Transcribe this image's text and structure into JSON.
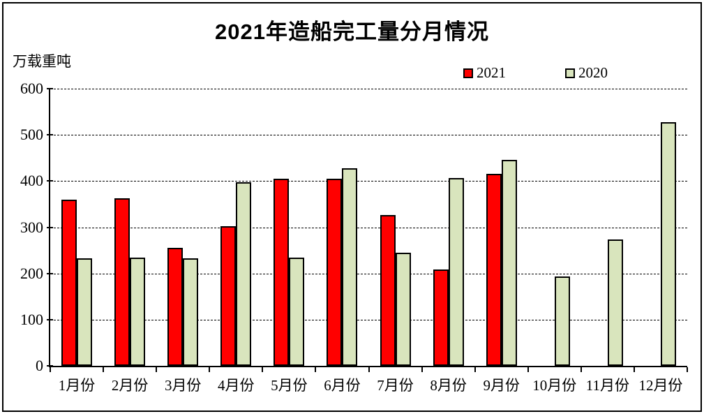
{
  "page": {
    "background": "#ffffff",
    "frame_border_color": "#000000"
  },
  "chart_data": {
    "type": "bar",
    "title": "2021年造船完工量分月情况",
    "ylabel": "万载重吨",
    "xlabel": "",
    "categories": [
      "1月份",
      "2月份",
      "3月份",
      "4月份",
      "5月份",
      "6月份",
      "7月份",
      "8月份",
      "9月份",
      "10月份",
      "11月份",
      "12月份"
    ],
    "series": [
      {
        "name": "2021",
        "color": "#ff0000",
        "values": [
          360,
          362,
          255,
          302,
          405,
          405,
          326,
          209,
          415,
          null,
          null,
          null
        ]
      },
      {
        "name": "2020",
        "color": "#d9e5bd",
        "values": [
          233,
          234,
          232,
          398,
          234,
          427,
          245,
          407,
          446,
          193,
          273,
          528
        ]
      }
    ],
    "ylim": [
      0,
      600
    ],
    "yticks": [
      0,
      100,
      200,
      300,
      400,
      500,
      600
    ],
    "grid": "horizontal-dashed",
    "legend_position": "top-right",
    "axis_color": "#000000"
  }
}
